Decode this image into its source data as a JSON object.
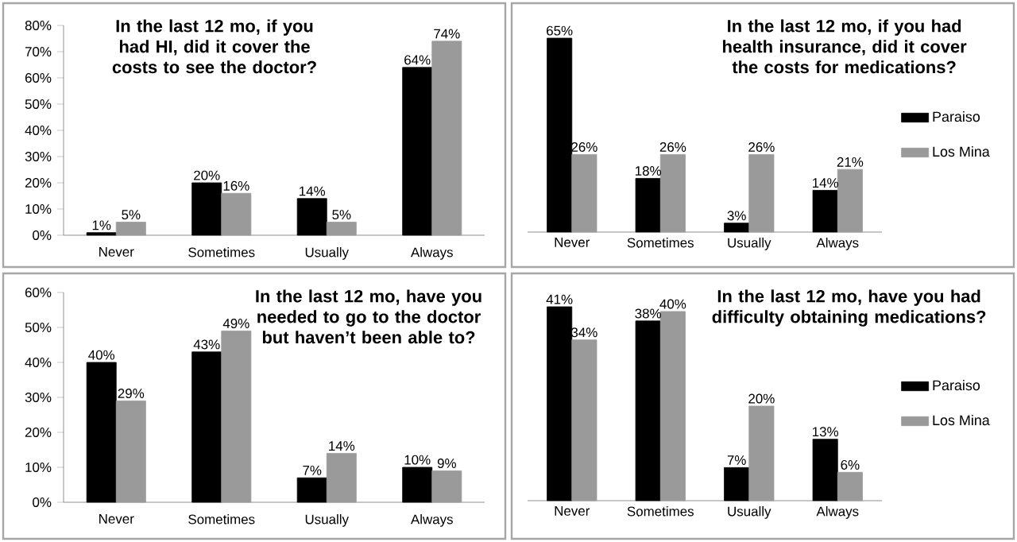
{
  "chart_data": [
    {
      "type": "bar",
      "title": "In the last 12 mo, if you had HI, did it cover the costs to see the doctor?",
      "categories": [
        "Never",
        "Sometimes",
        "Usually",
        "Always"
      ],
      "series": [
        {
          "color": "#000000",
          "values": [
            1,
            20,
            14,
            64
          ],
          "value_labels": [
            "1%",
            "20%",
            "14%",
            "64%"
          ]
        },
        {
          "color": "#9a9a9a",
          "values": [
            5,
            16,
            5,
            74
          ],
          "value_labels": [
            "5%",
            "16%",
            "5%",
            "74%"
          ]
        }
      ],
      "ylim": [
        0,
        80
      ],
      "yticks": [
        {
          "value": 0,
          "label": "0%"
        },
        {
          "value": 10,
          "label": "10%"
        },
        {
          "value": 20,
          "label": "20%"
        },
        {
          "value": 30,
          "label": "30%"
        },
        {
          "value": 40,
          "label": "40%"
        },
        {
          "value": 50,
          "label": "50%"
        },
        {
          "value": 60,
          "label": "60%"
        },
        {
          "value": 70,
          "label": "70%"
        },
        {
          "value": 80,
          "label": "80%"
        }
      ]
    },
    {
      "type": "bar",
      "title": "In the last 12 mo, if you had health insurance, did it cover the costs for medications?",
      "categories": [
        "Never",
        "Sometimes",
        "Usually",
        "Always"
      ],
      "series": [
        {
          "name": "Paraiso",
          "color": "#000000",
          "values": [
            65,
            18,
            3,
            14
          ],
          "value_labels": [
            "65%",
            "18%",
            "3%",
            "14%"
          ]
        },
        {
          "name": "Los Mina",
          "color": "#9a9a9a",
          "values": [
            26,
            26,
            26,
            21
          ],
          "value_labels": [
            "26%",
            "26%",
            "26%",
            "21%"
          ]
        }
      ],
      "legend": "right"
    },
    {
      "type": "bar",
      "title": "In the last 12 mo, have you needed to go to the doctor but haven’t been able to?",
      "categories": [
        "Never",
        "Sometimes",
        "Usually",
        "Always"
      ],
      "series": [
        {
          "color": "#000000",
          "values": [
            40,
            43,
            7,
            10
          ],
          "value_labels": [
            "40%",
            "43%",
            "7%",
            "10%"
          ]
        },
        {
          "color": "#9a9a9a",
          "values": [
            29,
            49,
            14,
            9
          ],
          "value_labels": [
            "29%",
            "49%",
            "14%",
            "9%"
          ]
        }
      ],
      "ylim": [
        0,
        60
      ],
      "yticks": [
        {
          "value": 0,
          "label": "0%"
        },
        {
          "value": 10,
          "label": "10%"
        },
        {
          "value": 20,
          "label": "20%"
        },
        {
          "value": 30,
          "label": "30%"
        },
        {
          "value": 40,
          "label": "40%"
        },
        {
          "value": 50,
          "label": "50%"
        },
        {
          "value": 60,
          "label": "60%"
        }
      ]
    },
    {
      "type": "bar",
      "title": "In the last 12 mo, have you had difficulty obtaining medications?",
      "categories": [
        "Never",
        "Sometimes",
        "Usually",
        "Always"
      ],
      "series": [
        {
          "name": "Paraiso",
          "color": "#000000",
          "values": [
            41,
            38,
            7,
            13
          ],
          "value_labels": [
            "41%",
            "38%",
            "7%",
            "13%"
          ]
        },
        {
          "name": "Los Mina",
          "color": "#9a9a9a",
          "values": [
            34,
            40,
            20,
            6
          ],
          "value_labels": [
            "34%",
            "40%",
            "20%",
            "6%"
          ]
        }
      ],
      "legend": "right"
    }
  ]
}
